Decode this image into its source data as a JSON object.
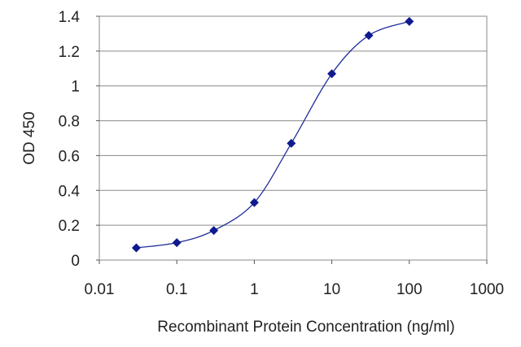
{
  "chart_data": {
    "type": "scatter",
    "title": "",
    "xlabel": "Recombinant Protein Concentration (ng/ml)",
    "ylabel": "OD 450",
    "x_scale": "log",
    "xlim": [
      0.01,
      1000
    ],
    "ylim": [
      0,
      1.4
    ],
    "x_ticks": [
      0.01,
      0.1,
      1,
      10,
      100,
      1000
    ],
    "x_tick_labels": [
      "0.01",
      "0.1",
      "1",
      "10",
      "100",
      "1000"
    ],
    "y_ticks": [
      0,
      0.2,
      0.4,
      0.6,
      0.8,
      1,
      1.2,
      1.4
    ],
    "y_tick_labels": [
      "0",
      "0.2",
      "0.4",
      "0.6",
      "0.8",
      "1",
      "1.2",
      "1.4"
    ],
    "grid": "horizontal",
    "legend": "none",
    "series": [
      {
        "x": [
          0.03,
          0.1,
          0.3,
          1,
          3,
          10,
          30,
          100
        ],
        "y": [
          0.07,
          0.1,
          0.17,
          0.33,
          0.67,
          1.07,
          1.29,
          1.37
        ],
        "fit": "sigmoidal curve"
      }
    ],
    "colors": {
      "line": "#1f2f9a",
      "marker": "#0f1a8f",
      "grid": "#8a8a8a"
    }
  }
}
